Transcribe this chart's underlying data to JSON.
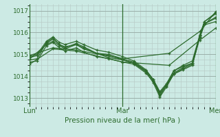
{
  "title": "Pression niveau de la mer( hPa )",
  "bg_color": "#cceae4",
  "line_color": "#2d6b2d",
  "grid_minor_color": "#b8ccc8",
  "grid_major_color": "#9aafaa",
  "text_color": "#2d6b2d",
  "yticks": [
    1013,
    1014,
    1015,
    1016,
    1017
  ],
  "ylim": [
    1012.6,
    1017.3
  ],
  "xlim": [
    0.0,
    2.0
  ],
  "xtick_labels": [
    "Lun",
    "Mar",
    "Mer"
  ],
  "xtick_positions": [
    0,
    1,
    2
  ],
  "lines": [
    [
      0.0,
      1014.75,
      0.08,
      1014.8,
      0.18,
      1015.55,
      0.25,
      1015.75,
      0.32,
      1015.45,
      0.38,
      1015.3,
      0.5,
      1015.5,
      0.58,
      1015.35,
      0.72,
      1015.05,
      0.85,
      1014.85,
      1.0,
      1014.75,
      1.12,
      1014.6,
      1.25,
      1014.25,
      1.33,
      1013.85,
      1.4,
      1013.1,
      1.47,
      1013.6,
      1.55,
      1014.25,
      1.65,
      1014.45,
      1.75,
      1014.6,
      1.83,
      1015.85,
      1.88,
      1016.5,
      2.0,
      1016.85
    ],
    [
      0.0,
      1014.85,
      0.08,
      1014.95,
      0.18,
      1015.5,
      0.25,
      1015.7,
      0.32,
      1015.45,
      0.38,
      1015.35,
      0.5,
      1015.45,
      0.58,
      1015.3,
      0.72,
      1015.05,
      0.85,
      1014.95,
      1.0,
      1014.75,
      1.12,
      1014.6,
      1.25,
      1014.2,
      1.33,
      1013.7,
      1.4,
      1013.05,
      1.47,
      1013.5,
      1.55,
      1014.1,
      1.65,
      1014.35,
      1.75,
      1014.55,
      1.83,
      1015.75,
      1.88,
      1016.4,
      2.0,
      1016.65
    ],
    [
      0.0,
      1014.65,
      0.08,
      1014.7,
      0.18,
      1015.4,
      0.25,
      1015.55,
      0.32,
      1015.3,
      0.38,
      1015.15,
      0.5,
      1015.3,
      0.58,
      1015.1,
      0.72,
      1014.9,
      0.85,
      1014.8,
      1.0,
      1014.65,
      1.12,
      1014.55,
      1.25,
      1014.15,
      1.33,
      1013.75,
      1.4,
      1013.2,
      1.47,
      1013.55,
      1.55,
      1014.1,
      1.65,
      1014.3,
      1.75,
      1014.5,
      1.83,
      1015.8,
      1.88,
      1016.35,
      2.0,
      1016.5
    ],
    [
      0.0,
      1014.8,
      0.18,
      1015.45,
      0.25,
      1015.6,
      0.32,
      1015.4,
      0.38,
      1015.25,
      0.5,
      1015.45,
      0.58,
      1015.25,
      0.72,
      1015.05,
      0.85,
      1015.0,
      1.0,
      1014.8,
      1.12,
      1014.65,
      1.25,
      1014.25,
      1.33,
      1013.8,
      1.4,
      1013.25,
      1.47,
      1013.6,
      1.55,
      1014.15,
      1.65,
      1014.4,
      1.75,
      1014.6,
      1.83,
      1015.85,
      1.88,
      1016.4,
      2.0,
      1016.7
    ],
    [
      0.0,
      1014.9,
      0.08,
      1015.0,
      0.18,
      1015.6,
      0.25,
      1015.8,
      0.32,
      1015.55,
      0.38,
      1015.45,
      0.5,
      1015.6,
      0.58,
      1015.45,
      0.72,
      1015.2,
      0.85,
      1015.1,
      1.0,
      1014.9,
      1.12,
      1014.7,
      1.25,
      1014.3,
      1.33,
      1013.85,
      1.4,
      1013.3,
      1.47,
      1013.65,
      1.55,
      1014.25,
      1.65,
      1014.5,
      1.75,
      1014.7,
      1.83,
      1015.9,
      1.88,
      1016.5,
      2.0,
      1016.9
    ],
    [
      0.0,
      1014.95,
      0.25,
      1015.3,
      0.5,
      1015.2,
      1.0,
      1014.8,
      1.5,
      1015.05,
      1.83,
      1016.05,
      2.0,
      1016.95
    ],
    [
      0.0,
      1014.55,
      0.25,
      1015.25,
      0.5,
      1015.15,
      1.0,
      1014.65,
      1.5,
      1014.5,
      1.83,
      1015.65,
      2.0,
      1016.2
    ]
  ],
  "vline_positions": [
    0,
    1,
    2
  ]
}
